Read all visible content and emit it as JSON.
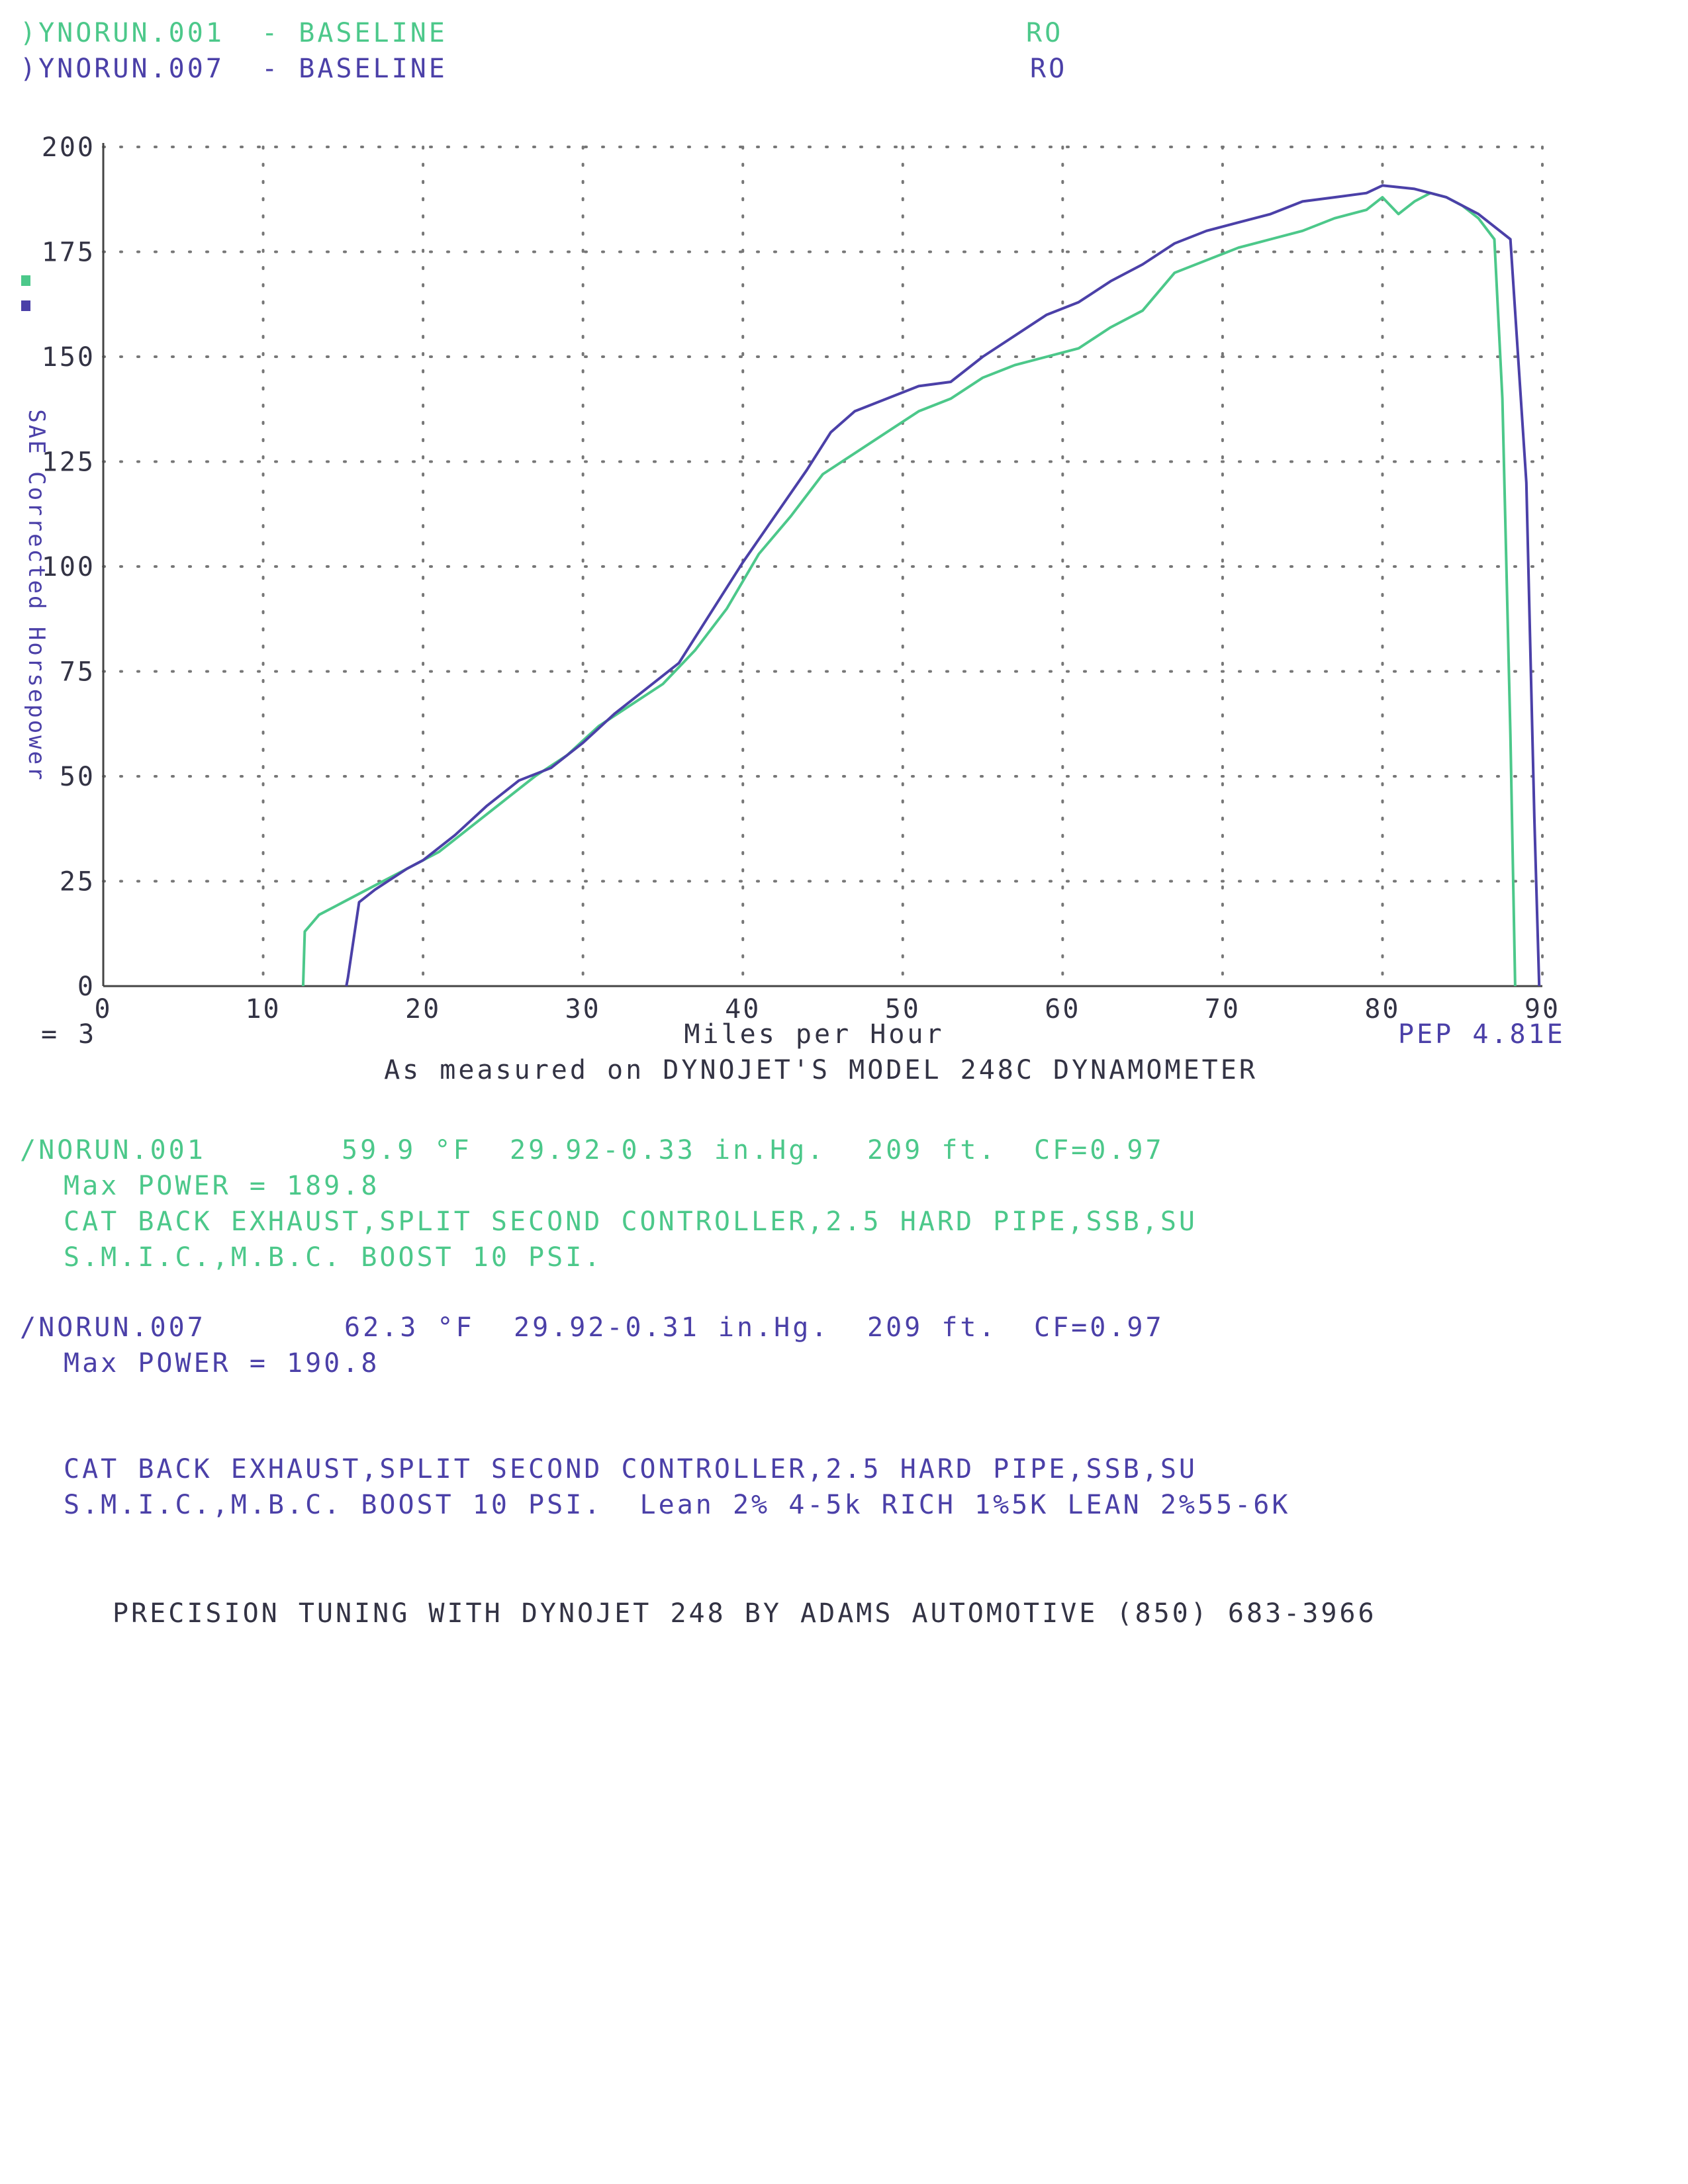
{
  "header": {
    "run1_label": ")YNORUN.001  - BASELINE",
    "run1_suffix": "RO",
    "run2_label": ")YNORUN.007  - BASELINE",
    "run2_suffix": "RO"
  },
  "chart_data": {
    "type": "line",
    "title": "",
    "xlabel": "Miles per Hour",
    "ylabel": "SAE Corrected Horsepower",
    "xlim": [
      0,
      90
    ],
    "ylim": [
      0,
      200
    ],
    "x_ticks": [
      "0",
      "10",
      "20",
      "30",
      "40",
      "50",
      "60",
      "70",
      "80",
      "90"
    ],
    "y_ticks": [
      "0",
      "25",
      "50",
      "75",
      "100",
      "125",
      "150",
      "175",
      "200"
    ],
    "grid": true,
    "left_note": "= 3",
    "right_note": "PEP 4.81E",
    "subtitle": "As measured on DYNOJET'S MODEL 248C DYNAMOMETER",
    "series": [
      {
        "name": "DYNORUN.001",
        "color": "#4cc88a",
        "points": [
          [
            12.5,
            0
          ],
          [
            12.6,
            13
          ],
          [
            13.5,
            17
          ],
          [
            15,
            20
          ],
          [
            17,
            24
          ],
          [
            19,
            28
          ],
          [
            21,
            32
          ],
          [
            23,
            38
          ],
          [
            25,
            44
          ],
          [
            27,
            50
          ],
          [
            29,
            55
          ],
          [
            31,
            62
          ],
          [
            33,
            67
          ],
          [
            35,
            72
          ],
          [
            37,
            80
          ],
          [
            39,
            90
          ],
          [
            41,
            103
          ],
          [
            43,
            112
          ],
          [
            45,
            122
          ],
          [
            47,
            127
          ],
          [
            49,
            132
          ],
          [
            51,
            137
          ],
          [
            53,
            140
          ],
          [
            55,
            145
          ],
          [
            57,
            148
          ],
          [
            59,
            150
          ],
          [
            61,
            152
          ],
          [
            63,
            157
          ],
          [
            65,
            161
          ],
          [
            67,
            170
          ],
          [
            69,
            173
          ],
          [
            71,
            176
          ],
          [
            73,
            178
          ],
          [
            75,
            180
          ],
          [
            77,
            183
          ],
          [
            79,
            185
          ],
          [
            80,
            188
          ],
          [
            81,
            184
          ],
          [
            82,
            187
          ],
          [
            83,
            189
          ],
          [
            84,
            188
          ],
          [
            85,
            186
          ],
          [
            86,
            183
          ],
          [
            87,
            178
          ],
          [
            87.5,
            140
          ],
          [
            88,
            60
          ],
          [
            88.3,
            0
          ]
        ]
      },
      {
        "name": "DYNORUN.007",
        "color": "#4b40a8",
        "points": [
          [
            15.2,
            0
          ],
          [
            15.3,
            2
          ],
          [
            16,
            20
          ],
          [
            17,
            23
          ],
          [
            19,
            28
          ],
          [
            20,
            30
          ],
          [
            22,
            36
          ],
          [
            24,
            43
          ],
          [
            26,
            49
          ],
          [
            28,
            52
          ],
          [
            30,
            58
          ],
          [
            32,
            65
          ],
          [
            34,
            71
          ],
          [
            36,
            77
          ],
          [
            38,
            89
          ],
          [
            40,
            101
          ],
          [
            42,
            112
          ],
          [
            44,
            123
          ],
          [
            45.5,
            132
          ],
          [
            47,
            137
          ],
          [
            49,
            140
          ],
          [
            51,
            143
          ],
          [
            53,
            144
          ],
          [
            55,
            150
          ],
          [
            57,
            155
          ],
          [
            59,
            160
          ],
          [
            61,
            163
          ],
          [
            63,
            168
          ],
          [
            65,
            172
          ],
          [
            67,
            177
          ],
          [
            69,
            180
          ],
          [
            71,
            182
          ],
          [
            73,
            184
          ],
          [
            75,
            187
          ],
          [
            77,
            188
          ],
          [
            79,
            189
          ],
          [
            80,
            190.8
          ],
          [
            82,
            190
          ],
          [
            84,
            188
          ],
          [
            86,
            184
          ],
          [
            88,
            178
          ],
          [
            89,
            120
          ],
          [
            89.5,
            40
          ],
          [
            89.8,
            0
          ]
        ]
      }
    ]
  },
  "run1": {
    "name": "/NORUN.001",
    "temp": "59.9 °F",
    "pressure": "29.92-0.33 in.Hg.",
    "alt": "209 ft.",
    "cf": "CF=0.97",
    "max_power": "Max POWER = 189.8",
    "notes1": "CAT BACK EXHAUST,SPLIT SECOND CONTROLLER,2.5 HARD PIPE,SSB,SU",
    "notes2": "S.M.I.C.,M.B.C. BOOST 10 PSI."
  },
  "run2": {
    "name": "/NORUN.007",
    "temp": "62.3 °F",
    "pressure": "29.92-0.31 in.Hg.",
    "alt": "209 ft.",
    "cf": "CF=0.97",
    "max_power": "Max POWER = 190.8",
    "notes1": "CAT BACK EXHAUST,SPLIT SECOND CONTROLLER,2.5 HARD PIPE,SSB,SU",
    "notes2": "S.M.I.C.,M.B.C. BOOST 10 PSI.  Lean 2% 4-5k RICH 1%5K LEAN 2%55-6K"
  },
  "footer": "PRECISION TUNING WITH DYNOJET 248 BY ADAMS AUTOMOTIVE (850) 683-3966"
}
